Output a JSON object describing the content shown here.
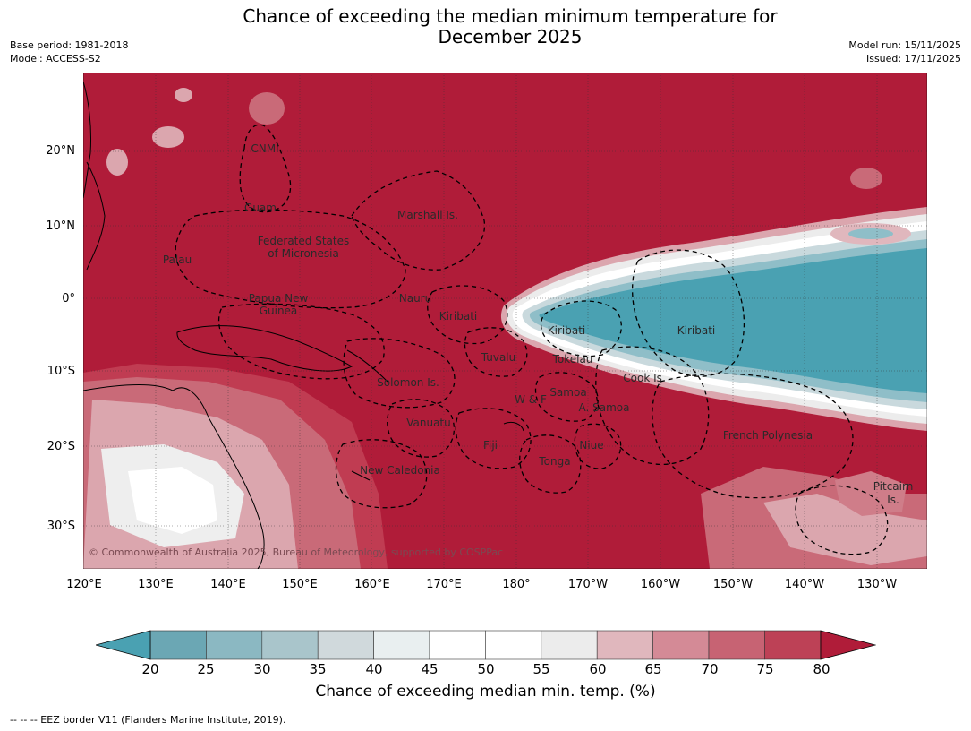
{
  "title_line1": "Chance of exceeding the median minimum temperature for",
  "title_line2": "December 2025",
  "base_period": "Base period: 1981-2018",
  "model": "Model: ACCESS-S2",
  "model_run": "Model run: 15/11/2025",
  "issued": "Issued: 17/11/2025",
  "lat_labels": [
    "20°N",
    "10°N",
    "0°",
    "10°S",
    "20°S",
    "30°S"
  ],
  "lon_labels": [
    "120°E",
    "130°E",
    "140°E",
    "150°E",
    "160°E",
    "170°E",
    "180°",
    "170°W",
    "160°W",
    "150°W",
    "140°W",
    "130°W"
  ],
  "colorbar": {
    "ticks": [
      "20",
      "25",
      "30",
      "35",
      "40",
      "45",
      "50",
      "55",
      "60",
      "65",
      "70",
      "75",
      "80"
    ],
    "label": "Chance of exceeding median min. temp. (%)",
    "colors": {
      "under": "#4aa1b2",
      "bins": [
        "#6ba7b4",
        "#8bb8c2",
        "#a9c5cb",
        "#d0d9dc",
        "#e9eff0",
        "#ffffff",
        "#ffffff",
        "#ececec",
        "#e0b7bd",
        "#d48a96",
        "#c76373",
        "#bd4156"
      ],
      "over": "#b01c39"
    }
  },
  "places": [
    {
      "name": "CNMI"
    },
    {
      "name": "Guam"
    },
    {
      "name": "Marshall Is."
    },
    {
      "name": "Federated States"
    },
    {
      "name": "of Micronesia"
    },
    {
      "name": "Palau"
    },
    {
      "name": "Nauru"
    },
    {
      "name": "Papua New"
    },
    {
      "name": "Guinea"
    },
    {
      "name": "Kiribati"
    },
    {
      "name": "Kiribati"
    },
    {
      "name": "Kiribati"
    },
    {
      "name": "Tuvalu"
    },
    {
      "name": "Tokelau"
    },
    {
      "name": "Solomon Is."
    },
    {
      "name": "Cook Is."
    },
    {
      "name": "Samoa"
    },
    {
      "name": "W & F"
    },
    {
      "name": "A. Samoa"
    },
    {
      "name": "Vanuatu"
    },
    {
      "name": "French Polynesia"
    },
    {
      "name": "Fiji"
    },
    {
      "name": "Niue"
    },
    {
      "name": "Tonga"
    },
    {
      "name": "New Caledonia"
    },
    {
      "name": "Pitcairn"
    },
    {
      "name": "Is."
    }
  ],
  "copyright": "© Commonwealth of Australia 2025, Bureau of Meteorology, supported by COSPPac",
  "footnote": "--  --  -- EEZ border V11 (Flanders Marine Institute, 2019)."
}
